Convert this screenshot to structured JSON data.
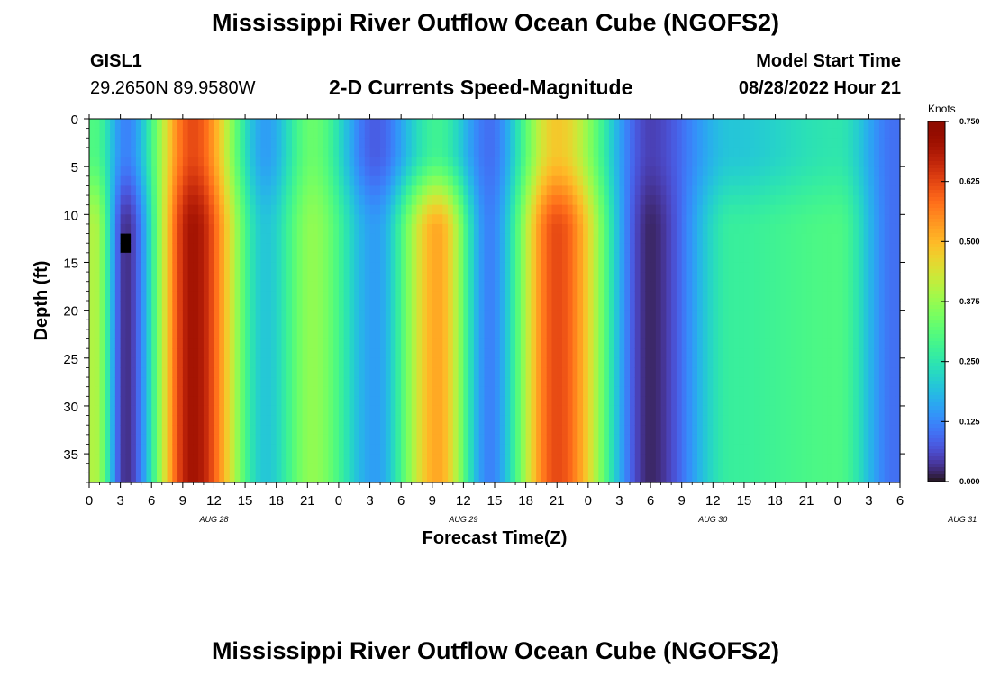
{
  "header": {
    "title": "Mississippi River Outflow Ocean Cube (NGOFS2)",
    "station_id": "GISL1",
    "station_coords": "29.2650N  89.9580W",
    "subtitle": "2-D Currents Speed-Magnitude",
    "model_label": "Model Start Time",
    "model_time": "08/28/2022 Hour 21"
  },
  "footer": {
    "title": "Mississippi River Outflow Ocean Cube (NGOFS2)"
  },
  "colorbar": {
    "unit": "Knots",
    "ticks": [
      "0.750",
      "0.625",
      "0.500",
      "0.375",
      "0.250",
      "0.125",
      "0.000"
    ],
    "min": 0,
    "max": 0.75
  },
  "chart_data": {
    "type": "heatmap",
    "title": "2-D Currents Speed-Magnitude",
    "xlabel": "Forecast Time(Z)",
    "ylabel": "Depth (ft)",
    "x_unit": "hours after 2022-08-28 00Z",
    "xlim": [
      0,
      78
    ],
    "ylim": [
      38,
      0
    ],
    "x_tick_labels": [
      "0",
      "3",
      "6",
      "9",
      "12",
      "15",
      "18",
      "21",
      "0",
      "3",
      "6",
      "9",
      "12",
      "15",
      "18",
      "21",
      "0",
      "3",
      "6",
      "9",
      "12",
      "15",
      "18",
      "21",
      "0",
      "3",
      "6"
    ],
    "y_tick_labels": [
      "0",
      "5",
      "10",
      "15",
      "20",
      "25",
      "30",
      "35"
    ],
    "date_labels": [
      "AUG 28",
      "AUG 29",
      "AUG 30",
      "AUG 31"
    ],
    "value_range": [
      0,
      0.75
    ],
    "colormap": "turbo",
    "features": [
      {
        "t": 3.5,
        "depth": 13,
        "value": 0.0,
        "note": "single minimum cell"
      }
    ],
    "columns": [
      {
        "t": 0.5,
        "surface": 0.3,
        "deep": 0.4
      },
      {
        "t": 3.5,
        "surface": 0.12,
        "deep": 0.03
      },
      {
        "t": 10.0,
        "surface": 0.62,
        "deep": 0.7
      },
      {
        "t": 17.0,
        "surface": 0.15,
        "deep": 0.2
      },
      {
        "t": 21.5,
        "surface": 0.33,
        "deep": 0.37
      },
      {
        "t": 27.5,
        "surface": 0.08,
        "deep": 0.15
      },
      {
        "t": 33.5,
        "surface": 0.28,
        "deep": 0.52
      },
      {
        "t": 38.5,
        "surface": 0.1,
        "deep": 0.12
      },
      {
        "t": 45.0,
        "surface": 0.48,
        "deep": 0.62
      },
      {
        "t": 54.0,
        "surface": 0.05,
        "deep": 0.02
      },
      {
        "t": 62.0,
        "surface": 0.2,
        "deep": 0.27
      },
      {
        "t": 72.0,
        "surface": 0.25,
        "deep": 0.3
      },
      {
        "t": 77.5,
        "surface": 0.1,
        "deep": 0.1
      }
    ]
  }
}
